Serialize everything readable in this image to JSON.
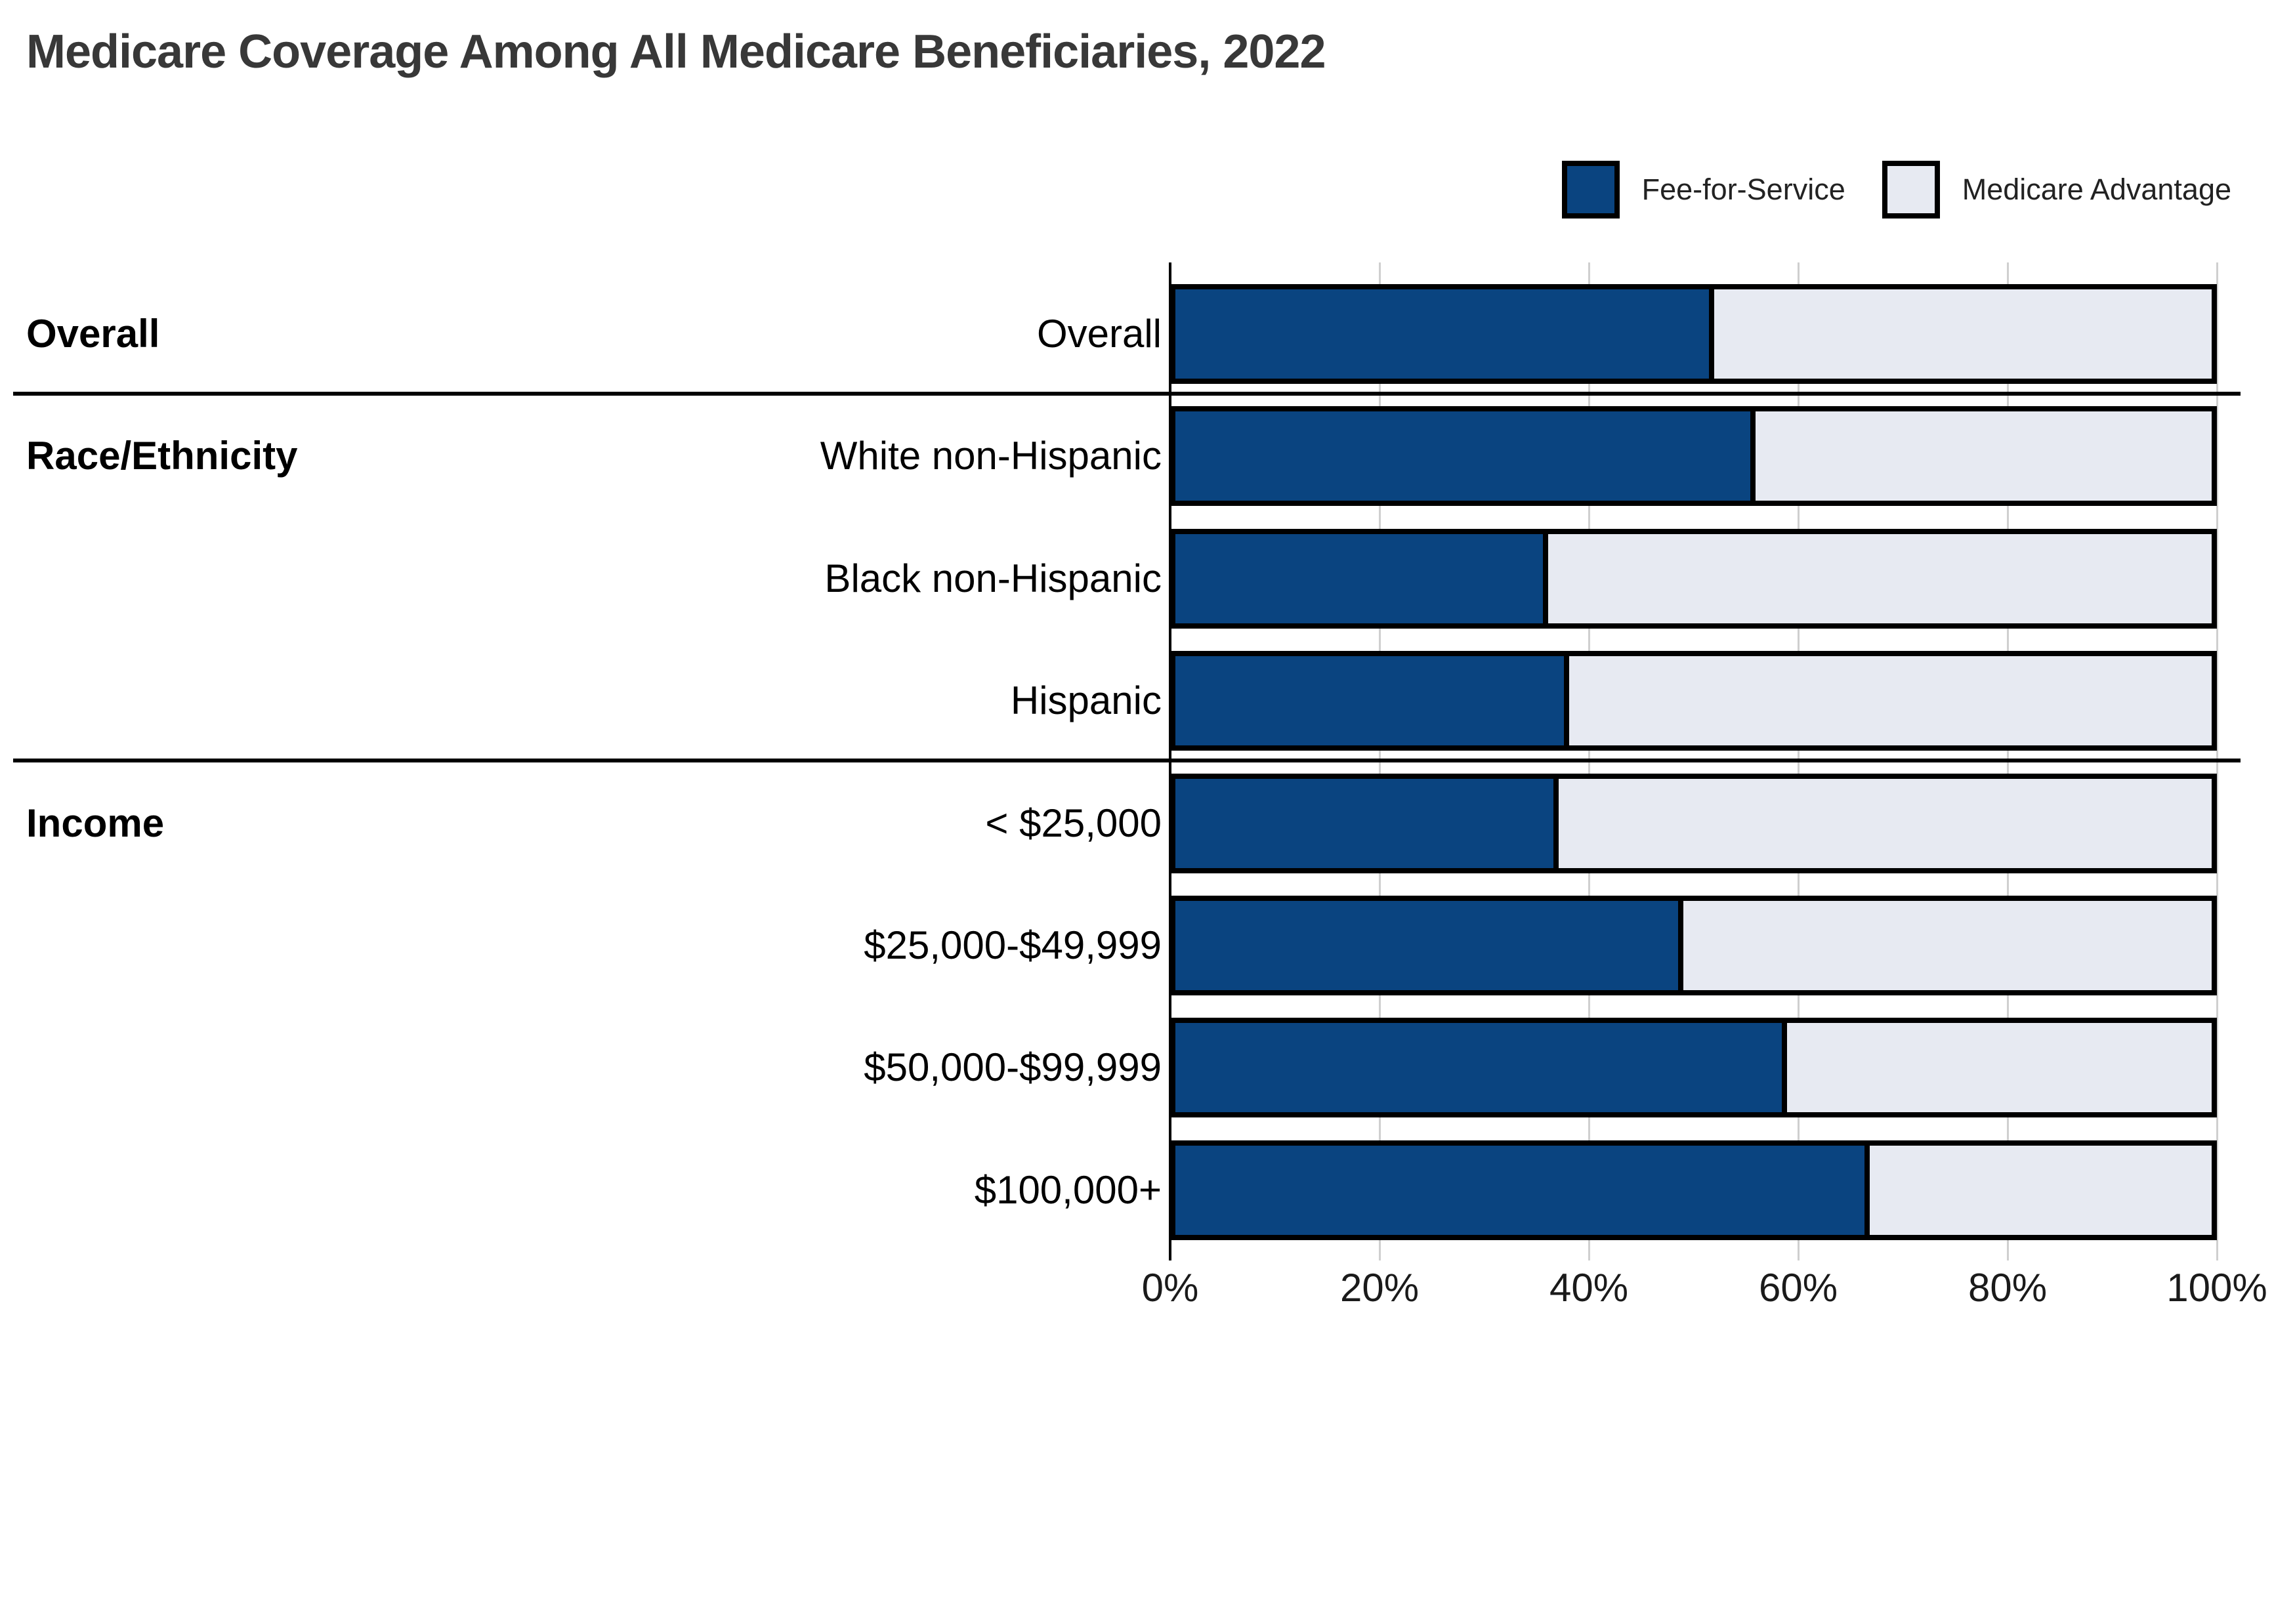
{
  "title": "Medicare Coverage Among All Medicare Beneficiaries, 2022",
  "legend": [
    {
      "label": "Fee-for-Service",
      "color": "#0a4480"
    },
    {
      "label": "Medicare Advantage",
      "color": "#e7eaf2"
    }
  ],
  "x_axis": {
    "ticks": [
      "0%",
      "20%",
      "40%",
      "60%",
      "80%",
      "100%"
    ]
  },
  "chart_data": {
    "type": "bar",
    "orientation": "horizontal",
    "stacked": true,
    "title": "Medicare Coverage Among All Medicare Beneficiaries, 2022",
    "xlabel": "",
    "ylabel": "",
    "xlim": [
      0,
      100
    ],
    "x_tick_labels": [
      "0%",
      "20%",
      "40%",
      "60%",
      "80%",
      "100%"
    ],
    "gridlines": true,
    "legend_position": "top-right",
    "units": "percent",
    "categories": [
      "Overall",
      "White non-Hispanic",
      "Black non-Hispanic",
      "Hispanic",
      "< $25,000",
      "$25,000-$49,999",
      "$50,000-$99,999",
      "$100,000+"
    ],
    "series": [
      {
        "name": "Fee-for-Service",
        "color": "#0a4480",
        "values": [
          52,
          56,
          36,
          38,
          37,
          49,
          59,
          67
        ]
      },
      {
        "name": "Medicare Advantage",
        "color": "#e7eaf2",
        "values": [
          48,
          44,
          64,
          62,
          63,
          51,
          41,
          33
        ]
      }
    ],
    "sections": [
      {
        "header": "Overall",
        "rows": [
          {
            "label": "Overall",
            "fee_for_service": 52,
            "medicare_advantage": 48
          }
        ]
      },
      {
        "header": "Race/Ethnicity",
        "rows": [
          {
            "label": "White non-Hispanic",
            "fee_for_service": 56,
            "medicare_advantage": 44
          },
          {
            "label": "Black non-Hispanic",
            "fee_for_service": 36,
            "medicare_advantage": 64
          },
          {
            "label": "Hispanic",
            "fee_for_service": 38,
            "medicare_advantage": 62
          }
        ]
      },
      {
        "header": "Income",
        "rows": [
          {
            "label": "< $25,000",
            "fee_for_service": 37,
            "medicare_advantage": 63
          },
          {
            "label": "$25,000-$49,999",
            "fee_for_service": 49,
            "medicare_advantage": 51
          },
          {
            "label": "$50,000-$99,999",
            "fee_for_service": 59,
            "medicare_advantage": 41
          },
          {
            "label": "$100,000+",
            "fee_for_service": 67,
            "medicare_advantage": 33
          }
        ]
      }
    ]
  }
}
